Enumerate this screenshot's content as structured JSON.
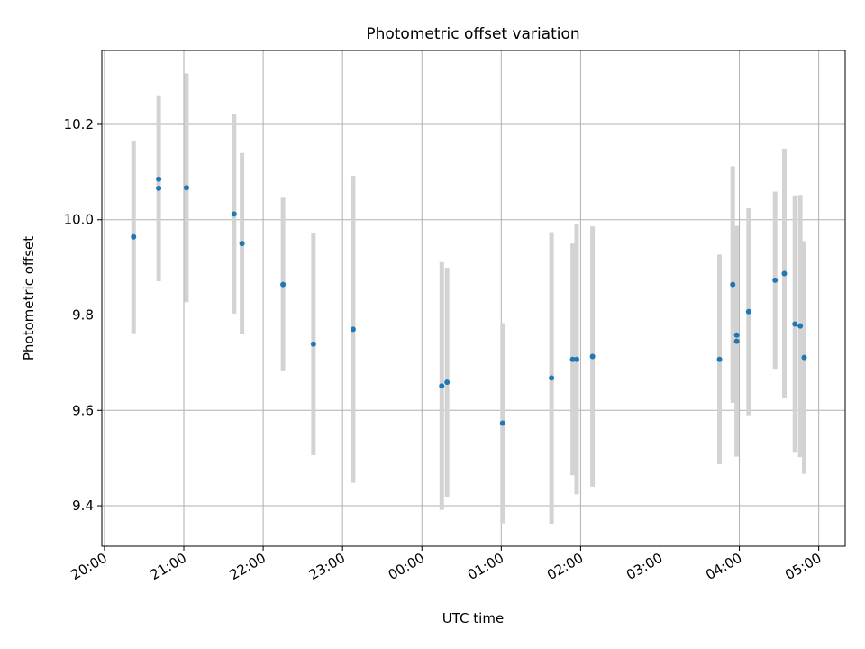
{
  "chart_data": {
    "type": "scatter",
    "title": "Photometric offset variation",
    "xlabel": "UTC time",
    "ylabel": "Photometric offset",
    "x_unit": "hours",
    "xlim": [
      "19:58",
      "05:20"
    ],
    "ylim": [
      9.315,
      10.355
    ],
    "x_ticks": [
      "20:00",
      "21:00",
      "22:00",
      "23:00",
      "00:00",
      "01:00",
      "02:00",
      "03:00",
      "04:00",
      "05:00"
    ],
    "y_ticks": [
      "9.4",
      "9.6",
      "9.8",
      "10.0",
      "10.2"
    ],
    "y_tick_values": [
      9.4,
      9.6,
      9.8,
      10.0,
      10.2
    ],
    "grid": true,
    "marker_color": "#1f77b4",
    "errorbar_color": "#d3d3d3",
    "points": [
      {
        "x": "20:22",
        "y": 9.964,
        "err": 0.202
      },
      {
        "x": "20:41",
        "y": 10.066,
        "err": 0.195
      },
      {
        "x": "20:41",
        "y": 10.085,
        "err": 0.0
      },
      {
        "x": "21:02",
        "y": 10.067,
        "err": 0.24
      },
      {
        "x": "21:38",
        "y": 10.012,
        "err": 0.209
      },
      {
        "x": "21:44",
        "y": 9.95,
        "err": 0.19
      },
      {
        "x": "22:15",
        "y": 9.864,
        "err": 0.182
      },
      {
        "x": "22:38",
        "y": 9.739,
        "err": 0.233
      },
      {
        "x": "23:08",
        "y": 9.77,
        "err": 0.322
      },
      {
        "x": "00:15",
        "y": 9.651,
        "err": 0.26
      },
      {
        "x": "00:19",
        "y": 9.659,
        "err": 0.24
      },
      {
        "x": "01:01",
        "y": 9.573,
        "err": 0.21
      },
      {
        "x": "01:38",
        "y": 9.668,
        "err": 0.306
      },
      {
        "x": "01:54",
        "y": 9.707,
        "err": 0.243
      },
      {
        "x": "01:57",
        "y": 9.707,
        "err": 0.283
      },
      {
        "x": "02:09",
        "y": 9.713,
        "err": 0.273
      },
      {
        "x": "03:45",
        "y": 9.707,
        "err": 0.22
      },
      {
        "x": "03:55",
        "y": 9.864,
        "err": 0.248
      },
      {
        "x": "03:58",
        "y": 9.758,
        "err": 0.0
      },
      {
        "x": "03:58",
        "y": 9.745,
        "err": 0.242
      },
      {
        "x": "04:07",
        "y": 9.807,
        "err": 0.217
      },
      {
        "x": "04:27",
        "y": 9.873,
        "err": 0.186
      },
      {
        "x": "04:34",
        "y": 9.887,
        "err": 0.262
      },
      {
        "x": "04:42",
        "y": 9.781,
        "err": 0.27
      },
      {
        "x": "04:46",
        "y": 9.777,
        "err": 0.275
      },
      {
        "x": "04:49",
        "y": 9.711,
        "err": 0.244
      }
    ]
  }
}
